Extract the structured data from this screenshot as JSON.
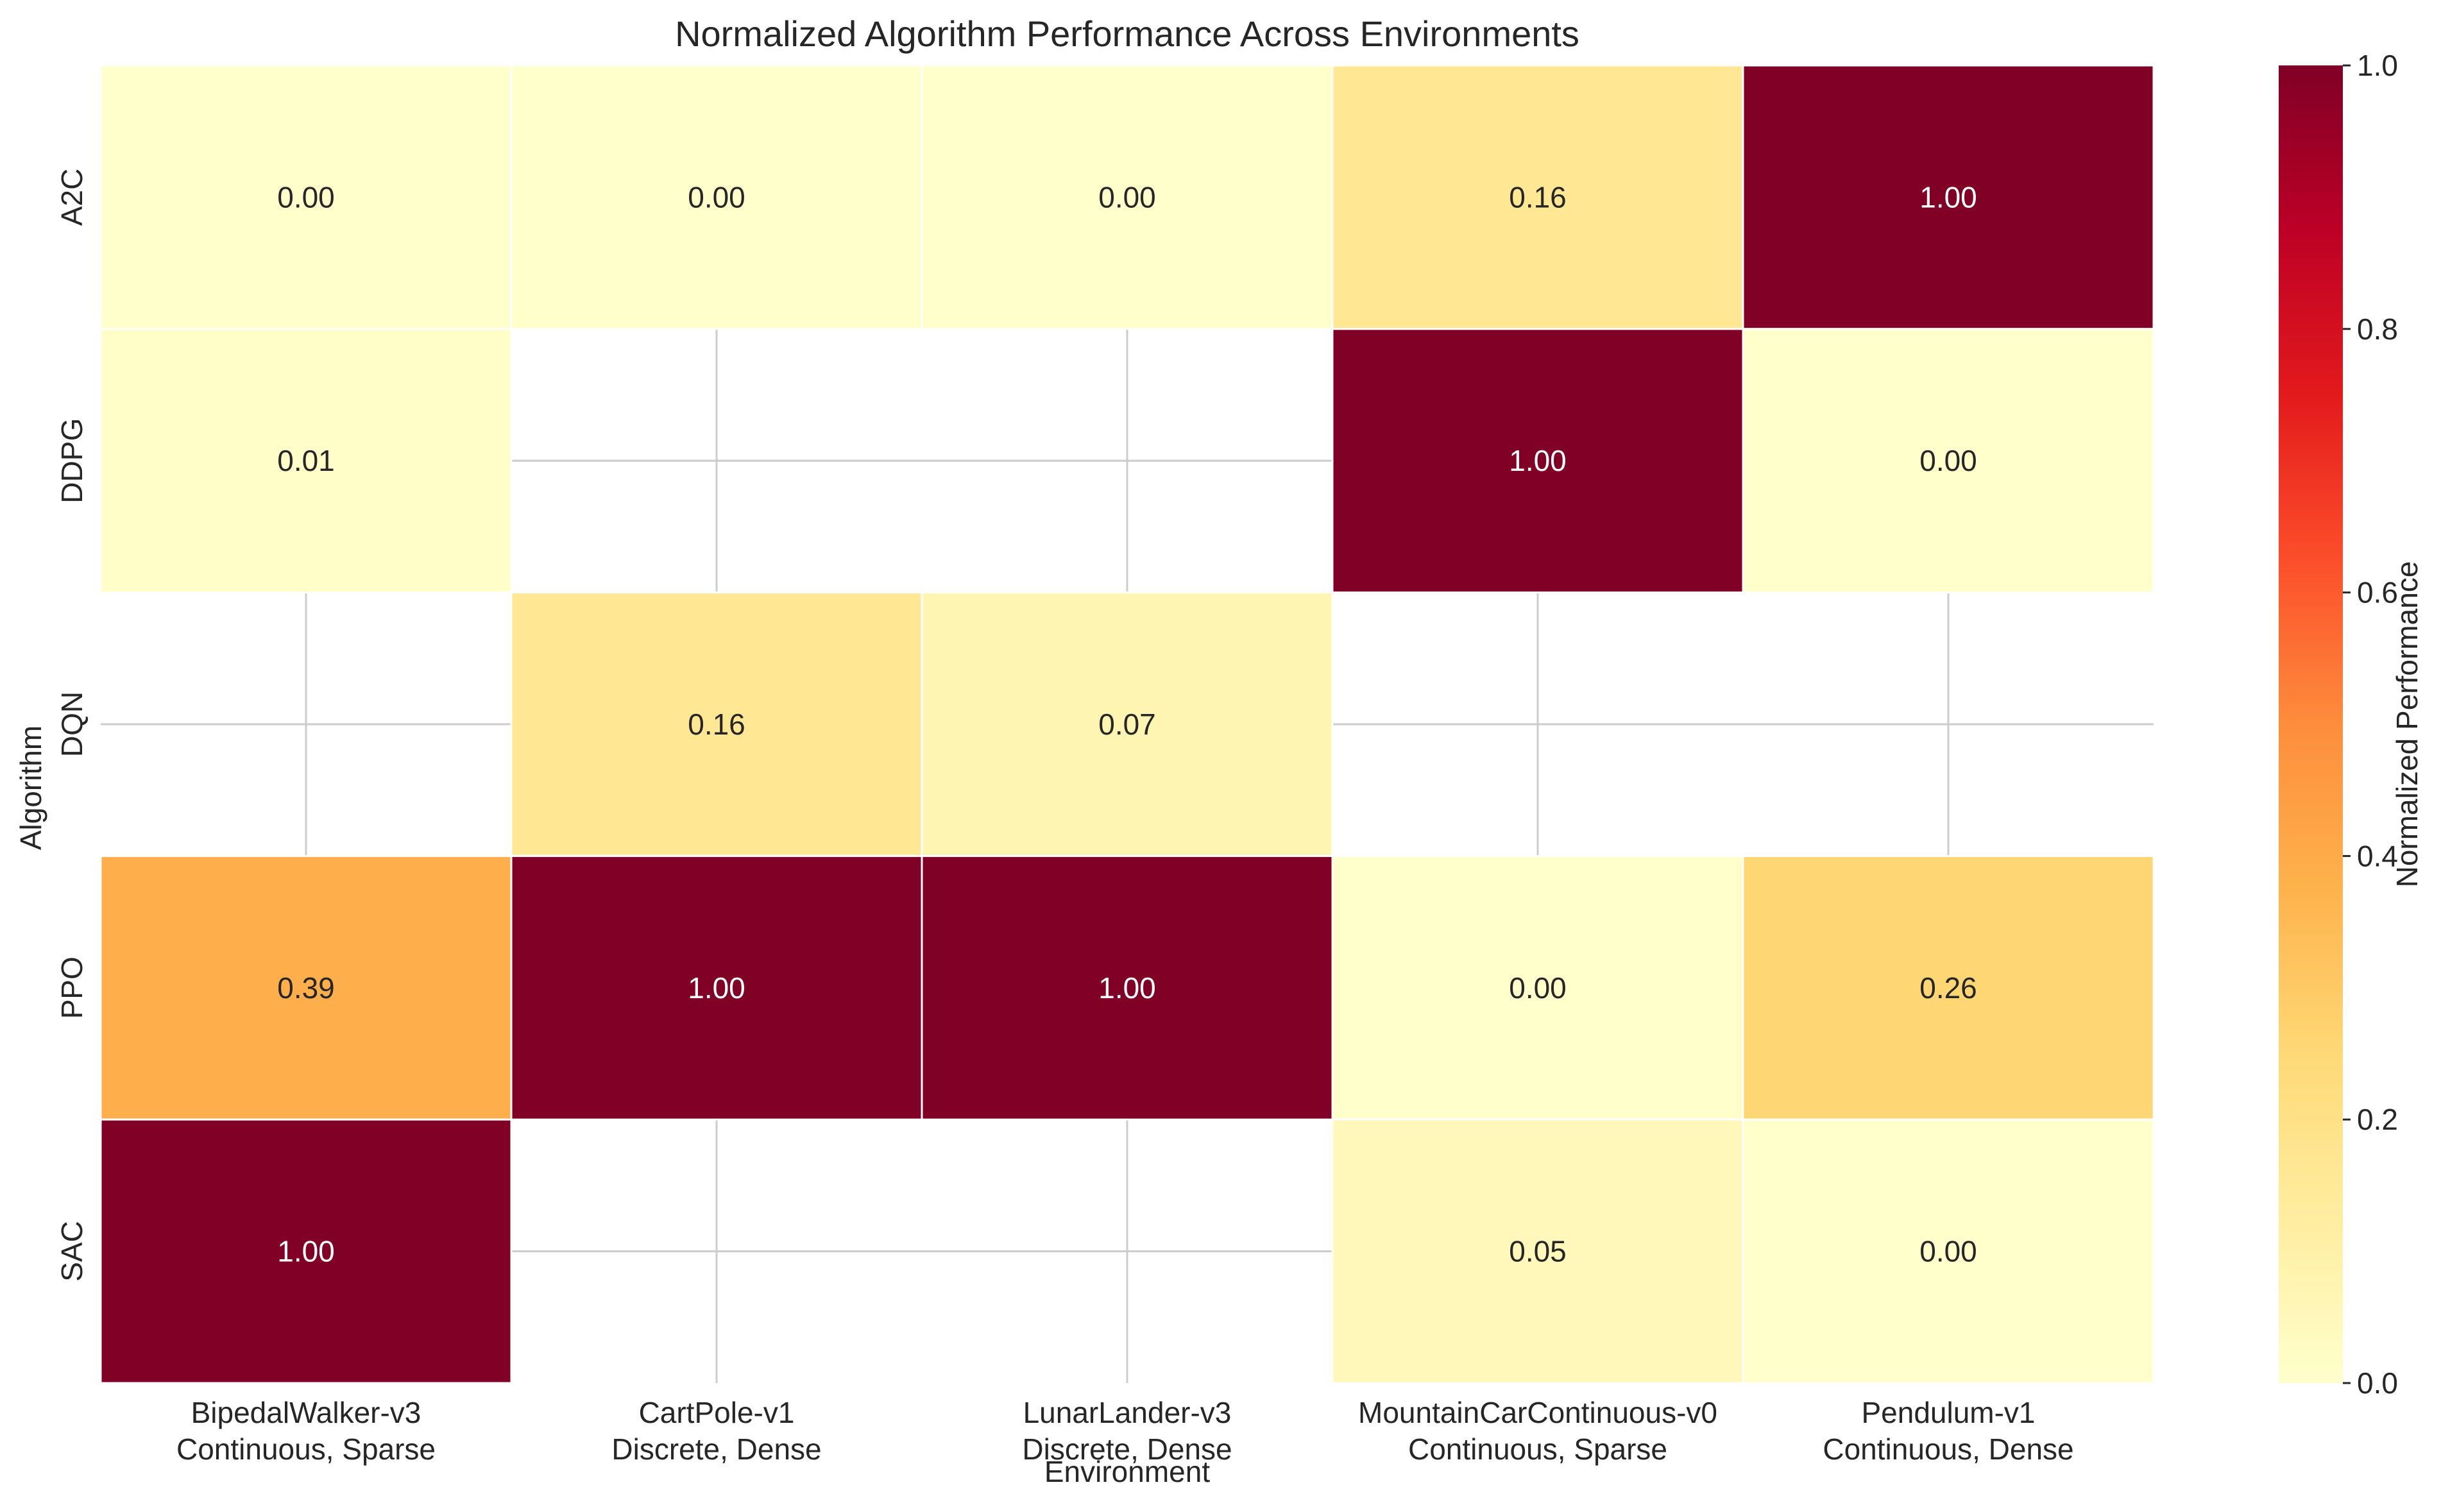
{
  "chart_data": {
    "type": "heatmap",
    "title": "Normalized Algorithm Performance Across Environments",
    "xlabel": "Environment",
    "ylabel": "Algorithm",
    "x_categories": [
      [
        "BipedalWalker-v3",
        "Continuous, Sparse"
      ],
      [
        "CartPole-v1",
        "Discrete, Dense"
      ],
      [
        "LunarLander-v3",
        "Discrete, Dense"
      ],
      [
        "MountainCarContinuous-v0",
        "Continuous, Sparse"
      ],
      [
        "Pendulum-v1",
        "Continuous, Dense"
      ]
    ],
    "y_categories": [
      "A2C",
      "DDPG",
      "DQN",
      "PPO",
      "SAC"
    ],
    "values": [
      [
        0.0,
        0.0,
        0.0,
        0.16,
        1.0
      ],
      [
        0.01,
        null,
        null,
        1.0,
        0.0
      ],
      [
        null,
        0.16,
        0.07,
        null,
        null
      ],
      [
        0.39,
        1.0,
        1.0,
        0.0,
        0.26
      ],
      [
        1.0,
        null,
        null,
        0.05,
        0.0
      ]
    ],
    "colormap": "YlOrRd",
    "colorbar": {
      "label": "Normalized Performance",
      "range": [
        0.0,
        1.0
      ],
      "ticks": [
        "0.0",
        "0.2",
        "0.4",
        "0.6",
        "0.8",
        "1.0"
      ]
    },
    "grid": true
  }
}
